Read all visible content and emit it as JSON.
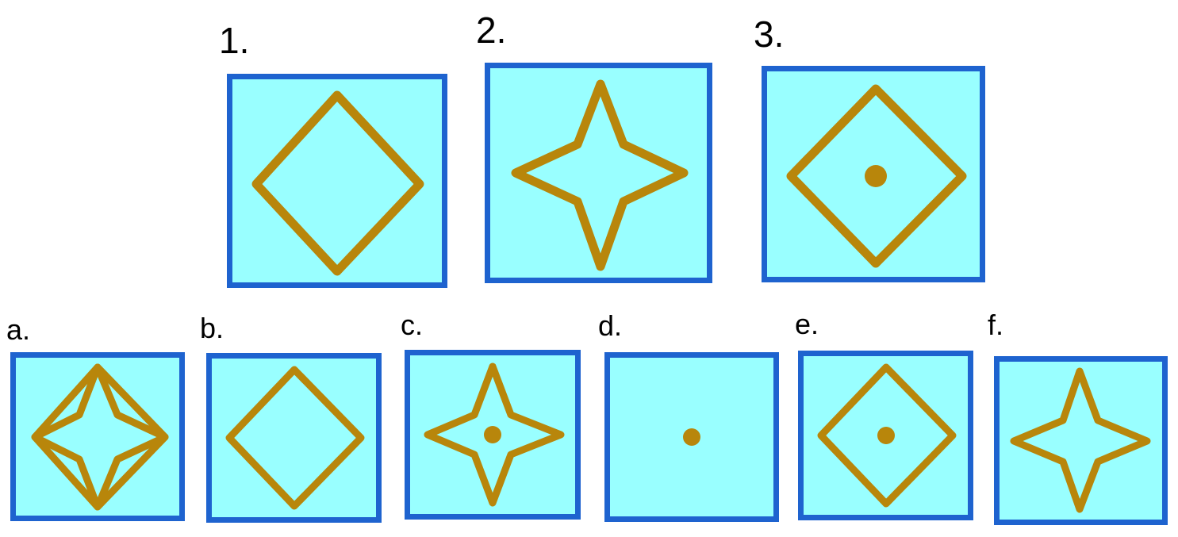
{
  "questions": [
    {
      "label": "1.",
      "figure": "diamond"
    },
    {
      "label": "2.",
      "figure": "four-point-star"
    },
    {
      "label": "3.",
      "figure": "diamond-with-center-dot"
    }
  ],
  "options": [
    {
      "label": "a.",
      "figure": "diamond-overlapping-star"
    },
    {
      "label": "b.",
      "figure": "diamond"
    },
    {
      "label": "c.",
      "figure": "four-point-star-with-center-dot"
    },
    {
      "label": "d.",
      "figure": "center-dot"
    },
    {
      "label": "e.",
      "figure": "diamond-with-center-dot"
    },
    {
      "label": "f.",
      "figure": "four-point-star"
    }
  ],
  "colors": {
    "tile_fill": "#99ffff",
    "tile_border": "#1e63cf",
    "shape_stroke": "#b8860b"
  }
}
